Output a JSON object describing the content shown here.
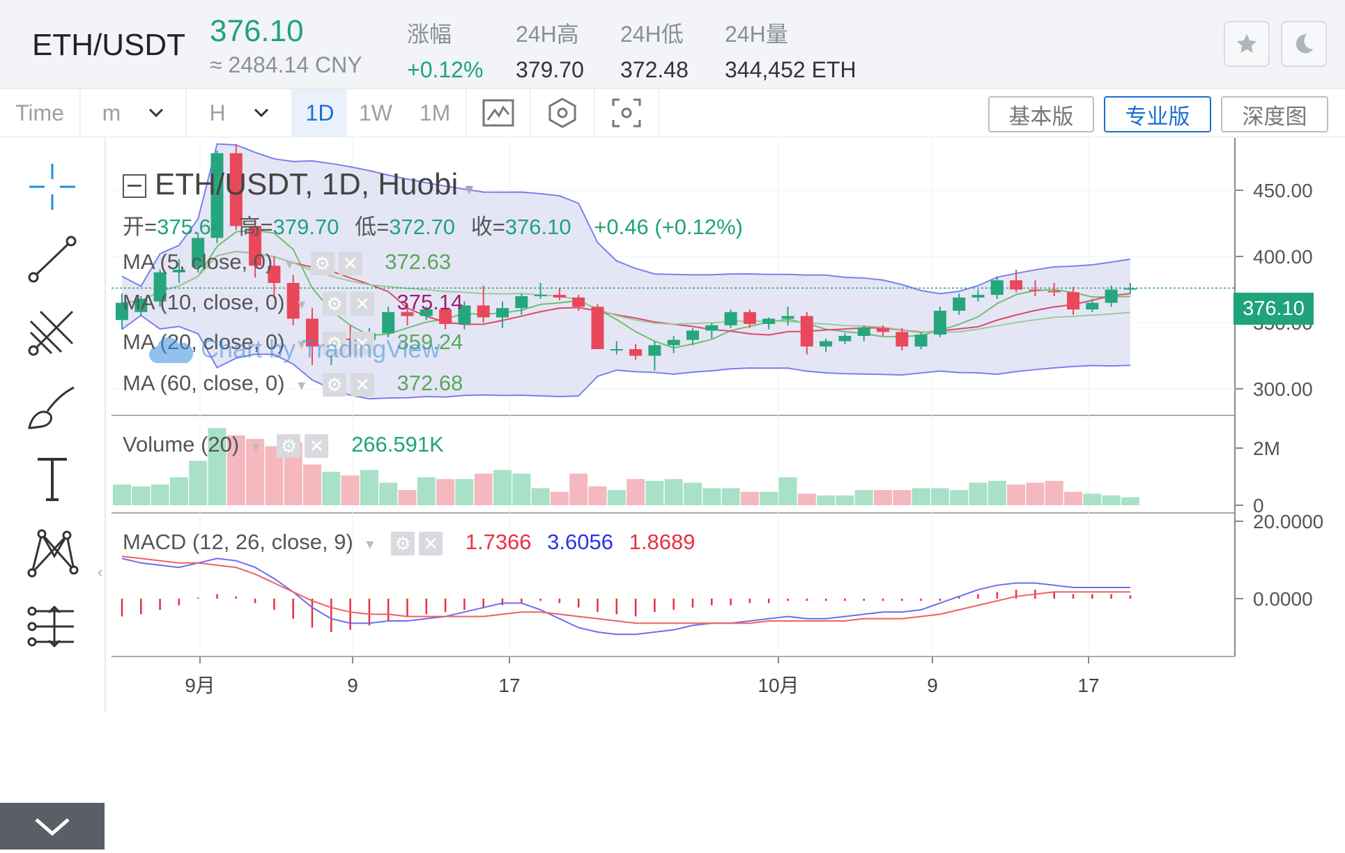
{
  "header": {
    "pair": "ETH/USDT",
    "price": "376.10",
    "cny": "≈ 2484.14 CNY",
    "stats": [
      {
        "label": "涨幅",
        "value": "+0.12%"
      },
      {
        "label": "24H高",
        "value": "379.70"
      },
      {
        "label": "24H低",
        "value": "372.48"
      },
      {
        "label": "24H量",
        "value": "344,452 ETH"
      }
    ],
    "buttons": [
      "star-icon",
      "moon-icon"
    ]
  },
  "toolbar": {
    "time": "Time",
    "minute": "m",
    "hour": "H",
    "intervals": [
      "1D",
      "1W",
      "1M"
    ],
    "active_interval": "1D",
    "views": [
      "基本版",
      "专业版",
      "深度图"
    ],
    "active_view": "专业版"
  },
  "chart_header": {
    "title": "ETH/USDT, 1D, Huobi",
    "ohlc_open_label": "开=",
    "ohlc_open": "375.64",
    "ohlc_high_label": "高=",
    "ohlc_high": "379.70",
    "ohlc_low_label": "低=",
    "ohlc_low": "372.70",
    "ohlc_close_label": "收=",
    "ohlc_close": "376.10",
    "change": "+0.46 (+0.12%)",
    "ma": [
      {
        "label": "MA (5, close, 0)",
        "value": "372.63",
        "color": "#5aa75a"
      },
      {
        "label": "MA (10, close, 0)",
        "value": "375.14",
        "color": "#a01e6e"
      },
      {
        "label": "MA (20, close, 0)",
        "value": "359.24",
        "color": "#5aa75a"
      },
      {
        "label": "MA (60, close, 0)",
        "value": "372.68",
        "color": "#5aa75a"
      }
    ],
    "volume_label": "Volume (20)",
    "volume_value": "266.591K",
    "macd_label": "MACD (12, 26, close, 9)",
    "macd_values": [
      "1.7366",
      "3.6056",
      "1.8689"
    ],
    "watermark": "Chart by TradingView",
    "last_price_tag": "376.10"
  },
  "chart_data": {
    "type": "candlestick",
    "x_labels": [
      "9月",
      "9",
      "17",
      "10月",
      "9",
      "17"
    ],
    "price_axis": [
      "450.00",
      "400.00",
      "350.00",
      "300.00"
    ],
    "volume_axis": [
      "2M",
      "0"
    ],
    "macd_axis": [
      "20.0000",
      "0.0000"
    ],
    "ylim": [
      296,
      492
    ],
    "candles": [
      {
        "o": 352,
        "h": 372,
        "l": 345,
        "c": 365
      },
      {
        "o": 358,
        "h": 370,
        "l": 355,
        "c": 368
      },
      {
        "o": 366,
        "h": 390,
        "l": 362,
        "c": 388
      },
      {
        "o": 388,
        "h": 398,
        "l": 380,
        "c": 390
      },
      {
        "o": 392,
        "h": 418,
        "l": 388,
        "c": 414
      },
      {
        "o": 414,
        "h": 480,
        "l": 410,
        "c": 478
      },
      {
        "o": 478,
        "h": 485,
        "l": 420,
        "c": 423
      },
      {
        "o": 423,
        "h": 428,
        "l": 384,
        "c": 393
      },
      {
        "o": 393,
        "h": 400,
        "l": 368,
        "c": 380
      },
      {
        "o": 380,
        "h": 386,
        "l": 348,
        "c": 353
      },
      {
        "o": 353,
        "h": 361,
        "l": 318,
        "c": 332
      },
      {
        "o": 332,
        "h": 342,
        "l": 318,
        "c": 338
      },
      {
        "o": 338,
        "h": 348,
        "l": 326,
        "c": 337
      },
      {
        "o": 337,
        "h": 346,
        "l": 334,
        "c": 342
      },
      {
        "o": 342,
        "h": 362,
        "l": 339,
        "c": 358
      },
      {
        "o": 358,
        "h": 364,
        "l": 348,
        "c": 355
      },
      {
        "o": 355,
        "h": 362,
        "l": 352,
        "c": 360
      },
      {
        "o": 360,
        "h": 362,
        "l": 345,
        "c": 349
      },
      {
        "o": 349,
        "h": 366,
        "l": 345,
        "c": 363
      },
      {
        "o": 363,
        "h": 378,
        "l": 350,
        "c": 354
      },
      {
        "o": 354,
        "h": 366,
        "l": 346,
        "c": 361
      },
      {
        "o": 361,
        "h": 372,
        "l": 356,
        "c": 370
      },
      {
        "o": 370,
        "h": 380,
        "l": 368,
        "c": 371
      },
      {
        "o": 371,
        "h": 376,
        "l": 367,
        "c": 369
      },
      {
        "o": 369,
        "h": 371,
        "l": 359,
        "c": 362
      },
      {
        "o": 362,
        "h": 364,
        "l": 330,
        "c": 330
      },
      {
        "o": 330,
        "h": 336,
        "l": 326,
        "c": 330
      },
      {
        "o": 330,
        "h": 334,
        "l": 322,
        "c": 325
      },
      {
        "o": 325,
        "h": 336,
        "l": 314,
        "c": 333
      },
      {
        "o": 333,
        "h": 340,
        "l": 327,
        "c": 337
      },
      {
        "o": 337,
        "h": 346,
        "l": 333,
        "c": 344
      },
      {
        "o": 344,
        "h": 350,
        "l": 338,
        "c": 348
      },
      {
        "o": 348,
        "h": 360,
        "l": 346,
        "c": 358
      },
      {
        "o": 358,
        "h": 360,
        "l": 346,
        "c": 349
      },
      {
        "o": 349,
        "h": 354,
        "l": 345,
        "c": 353
      },
      {
        "o": 353,
        "h": 362,
        "l": 348,
        "c": 355
      },
      {
        "o": 355,
        "h": 358,
        "l": 326,
        "c": 332
      },
      {
        "o": 332,
        "h": 338,
        "l": 328,
        "c": 336
      },
      {
        "o": 336,
        "h": 342,
        "l": 334,
        "c": 340
      },
      {
        "o": 340,
        "h": 348,
        "l": 336,
        "c": 346
      },
      {
        "o": 346,
        "h": 348,
        "l": 340,
        "c": 343
      },
      {
        "o": 343,
        "h": 346,
        "l": 329,
        "c": 332
      },
      {
        "o": 332,
        "h": 343,
        "l": 330,
        "c": 341
      },
      {
        "o": 341,
        "h": 362,
        "l": 339,
        "c": 359
      },
      {
        "o": 359,
        "h": 372,
        "l": 356,
        "c": 369
      },
      {
        "o": 369,
        "h": 375,
        "l": 366,
        "c": 371
      },
      {
        "o": 371,
        "h": 385,
        "l": 368,
        "c": 382
      },
      {
        "o": 382,
        "h": 390,
        "l": 373,
        "c": 375
      },
      {
        "o": 375,
        "h": 382,
        "l": 370,
        "c": 374
      },
      {
        "o": 374,
        "h": 380,
        "l": 370,
        "c": 373
      },
      {
        "o": 373,
        "h": 377,
        "l": 356,
        "c": 360
      },
      {
        "o": 360,
        "h": 368,
        "l": 358,
        "c": 365
      },
      {
        "o": 365,
        "h": 378,
        "l": 362,
        "c": 375
      },
      {
        "o": 375,
        "h": 380,
        "l": 372,
        "c": 376
      }
    ],
    "volume": [
      0.55,
      0.5,
      0.55,
      0.75,
      1.2,
      2.1,
      1.9,
      1.8,
      1.6,
      1.7,
      1.1,
      0.9,
      0.8,
      0.95,
      0.6,
      0.4,
      0.75,
      0.7,
      0.7,
      0.85,
      0.95,
      0.85,
      0.45,
      0.35,
      0.85,
      0.5,
      0.4,
      0.7,
      0.65,
      0.7,
      0.6,
      0.45,
      0.45,
      0.35,
      0.35,
      0.75,
      0.3,
      0.25,
      0.25,
      0.4,
      0.4,
      0.4,
      0.45,
      0.45,
      0.4,
      0.6,
      0.65,
      0.55,
      0.6,
      0.65,
      0.35,
      0.3,
      0.25,
      0.2
    ],
    "macd_hist": [
      -8,
      -7,
      -5,
      -3,
      0.5,
      2,
      1,
      -2,
      -5,
      -9,
      -13,
      -15,
      -14,
      -12,
      -10,
      -8,
      -7,
      -6,
      -5,
      -4,
      -3,
      -2,
      -1,
      -2,
      -4,
      -6,
      -7,
      -8,
      -6,
      -5,
      -4,
      -3,
      -3,
      -2,
      -2,
      -1,
      -1,
      -1,
      -1,
      -1,
      -1,
      -1,
      -1,
      -1,
      1,
      2,
      3,
      4,
      4,
      3,
      2,
      2,
      2,
      1.5
    ],
    "macd_line": [
      18,
      16,
      15,
      14,
      16,
      18,
      17,
      14,
      9,
      3,
      -4,
      -9,
      -11,
      -11,
      -10,
      -10,
      -9,
      -8,
      -6,
      -4,
      -2,
      -2,
      -5,
      -9,
      -13,
      -15,
      -16,
      -16,
      -15,
      -14,
      -12,
      -11,
      -11,
      -10,
      -9,
      -8,
      -9,
      -9,
      -8,
      -7,
      -6,
      -6,
      -5,
      -2,
      1,
      4,
      6,
      7,
      7,
      6,
      5,
      5,
      5,
      5
    ],
    "signal_line": [
      19,
      18,
      17,
      16,
      16,
      15,
      14,
      11,
      7,
      3,
      -1,
      -4,
      -6,
      -7,
      -7,
      -8,
      -8,
      -8,
      -8,
      -8,
      -7,
      -6,
      -6,
      -7,
      -8,
      -9,
      -10,
      -11,
      -11,
      -11,
      -11,
      -11,
      -11,
      -11,
      -10,
      -10,
      -10,
      -10,
      -10,
      -9,
      -9,
      -9,
      -8,
      -7,
      -5,
      -3,
      -1,
      1,
      2,
      3,
      3,
      3,
      3,
      3
    ]
  }
}
